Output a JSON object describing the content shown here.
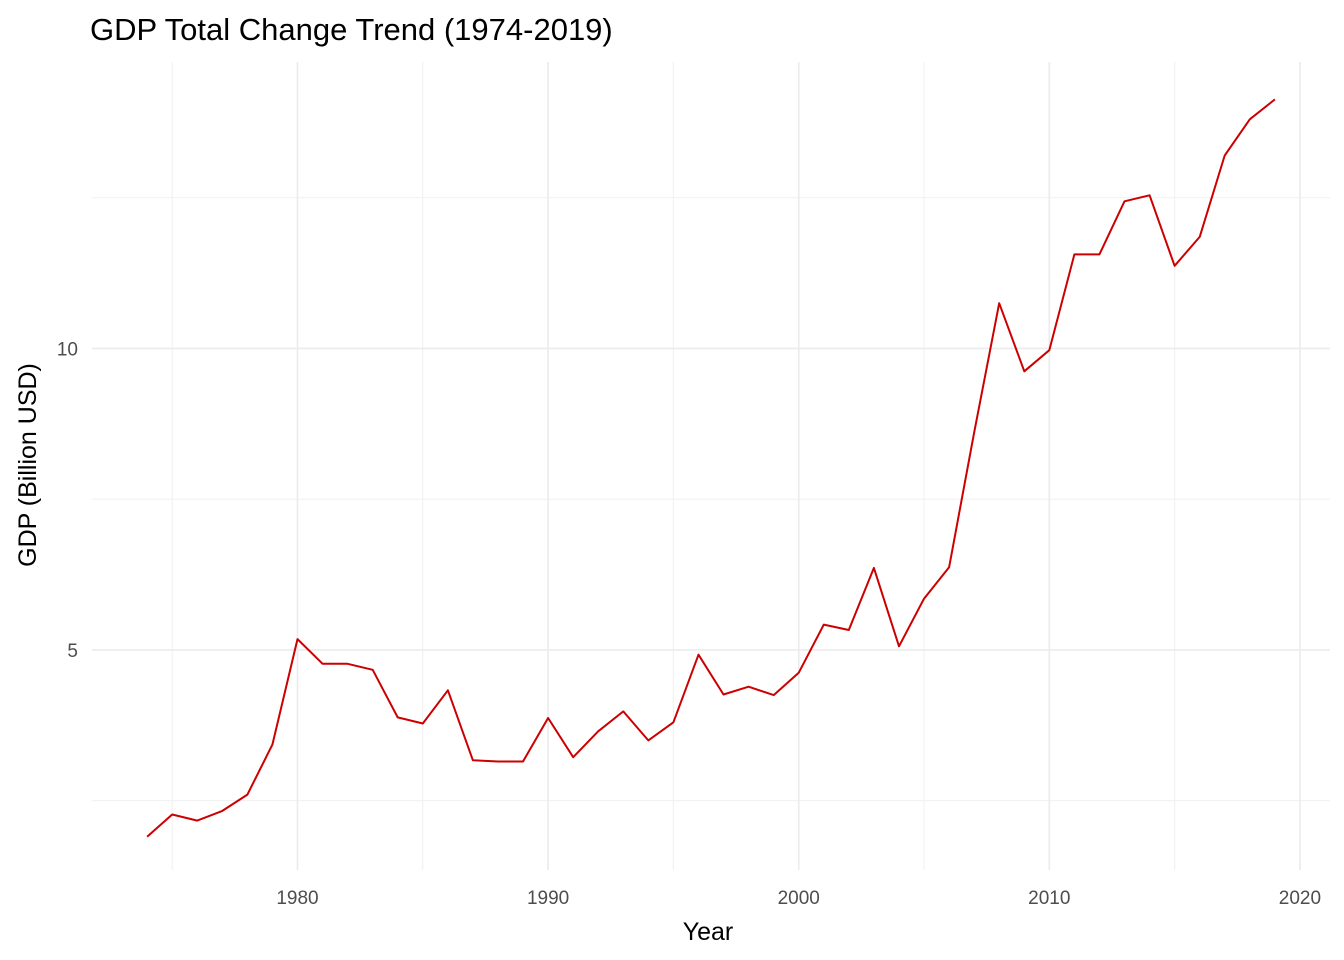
{
  "chart_data": {
    "type": "line",
    "title": "GDP Total Change Trend (1974-2019)",
    "xlabel": "Year",
    "ylabel": "GDP (Billion USD)",
    "x_ticks": [
      1980,
      1990,
      2000,
      2010,
      2020
    ],
    "y_ticks": [
      5,
      10
    ],
    "xlim": [
      1971.8,
      2021.2
    ],
    "ylim": [
      1.35,
      14.75
    ],
    "grid": true,
    "line_color": "#cc0000",
    "x": [
      1974,
      1975,
      1976,
      1977,
      1978,
      1979,
      1980,
      1981,
      1982,
      1983,
      1984,
      1985,
      1986,
      1987,
      1988,
      1989,
      1990,
      1991,
      1992,
      1993,
      1994,
      1995,
      1996,
      1997,
      1998,
      1999,
      2000,
      2001,
      2002,
      2003,
      2004,
      2005,
      2006,
      2007,
      2008,
      2009,
      2010,
      2011,
      2012,
      2013,
      2014,
      2015,
      2016,
      2017,
      2018,
      2019
    ],
    "y": [
      1.9,
      2.27,
      2.17,
      2.33,
      2.6,
      3.43,
      5.18,
      4.77,
      4.77,
      4.67,
      3.88,
      3.78,
      4.33,
      3.17,
      3.15,
      3.15,
      3.87,
      3.22,
      3.65,
      3.98,
      3.5,
      3.8,
      4.92,
      4.26,
      4.39,
      4.25,
      4.62,
      5.42,
      5.33,
      6.36,
      5.06,
      5.85,
      6.37,
      8.6,
      10.75,
      9.62,
      9.97,
      11.56,
      11.56,
      12.44,
      12.54,
      11.37,
      11.85,
      13.2,
      13.8,
      14.13
    ]
  }
}
